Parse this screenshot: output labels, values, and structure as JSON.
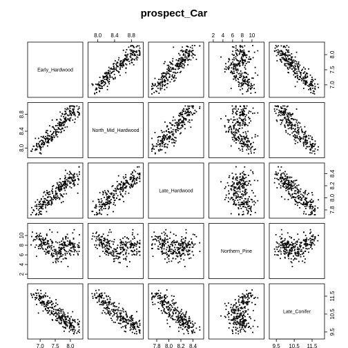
{
  "chart_data": {
    "type": "scatter",
    "title": "prospect_Car",
    "variables": [
      "Early_Hardwood",
      "North_Mid_Hardwood",
      "Late_Hardwood",
      "Northern_Pine",
      "Late_Conifer"
    ],
    "ranges": [
      [
        6.7,
        8.3
      ],
      [
        7.85,
        9.0
      ],
      [
        7.72,
        8.52
      ],
      [
        1.8,
        11.8
      ],
      [
        9.3,
        12.0
      ]
    ],
    "ticks": [
      [
        7.0,
        7.5,
        8.0
      ],
      [
        8.0,
        8.4,
        8.8
      ],
      [
        7.8,
        8.0,
        8.2,
        8.4
      ],
      [
        2,
        4,
        6,
        8,
        10
      ],
      [
        9.5,
        10.5,
        11.5
      ]
    ],
    "tick_labels": [
      [
        "7.0",
        "7.5",
        "8.0"
      ],
      [
        "8.0",
        "8.4",
        "8.8"
      ],
      [
        "7.8",
        "8.0",
        "8.2",
        "8.4"
      ],
      [
        "2",
        "4",
        "6",
        "8",
        "10"
      ],
      [
        "9.5",
        "10.5",
        "11.5"
      ]
    ],
    "axis_sides": {
      "top": [
        1,
        3
      ],
      "bottom": [
        0,
        2,
        4
      ],
      "left": [
        1,
        3
      ],
      "right": [
        0,
        2,
        4
      ]
    },
    "grid": false,
    "legend": "none",
    "point_color": "#000000",
    "data_note": "approximately 260 sampled observations; exact per-point values unreadable, points shown are representative samples"
  }
}
